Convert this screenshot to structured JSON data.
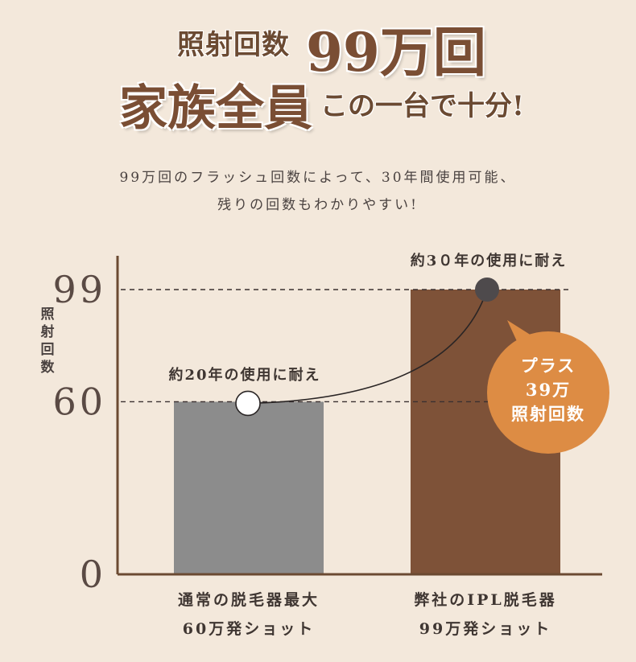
{
  "headline": {
    "line1_left": "照射回数",
    "line1_right": "99万回",
    "line2_left": "家族全員",
    "line2_right": "この一台で十分!"
  },
  "subtitle": {
    "line1": "99万回のフラッシュ回数によって、30年間使用可能、",
    "line2": "残りの回数もわかりやすい!"
  },
  "colors": {
    "background": "#f3e8db",
    "bar_regular": "#8c8c8c",
    "bar_ours": "#7e5238",
    "bubble": "#dd8c44",
    "axis": "#6b4a32",
    "text": "#4a4240"
  },
  "chart_data": {
    "type": "bar",
    "ylabel": "照射回数",
    "ylim": [
      0,
      99
    ],
    "yticks": [
      "0",
      "60",
      "99"
    ],
    "ytick_values": [
      0,
      60,
      99
    ],
    "categories": [
      "通常の脱毛器最大\n60万発ショット",
      "弊社のIPL脱毛器\n99万発ショット"
    ],
    "category_lines": [
      [
        "通常の脱毛器最大",
        "60万発ショット"
      ],
      [
        "弊社のIPL脱毛器",
        "99万発ショット"
      ]
    ],
    "values": [
      60,
      99
    ],
    "annotations": {
      "point_regular": "約20年の使用に耐え",
      "point_ours": "約3０年の使用に耐え",
      "bubble": [
        "プラス",
        "39万",
        "照射回数"
      ]
    },
    "gridlines_dashed_at": [
      60,
      99
    ]
  }
}
